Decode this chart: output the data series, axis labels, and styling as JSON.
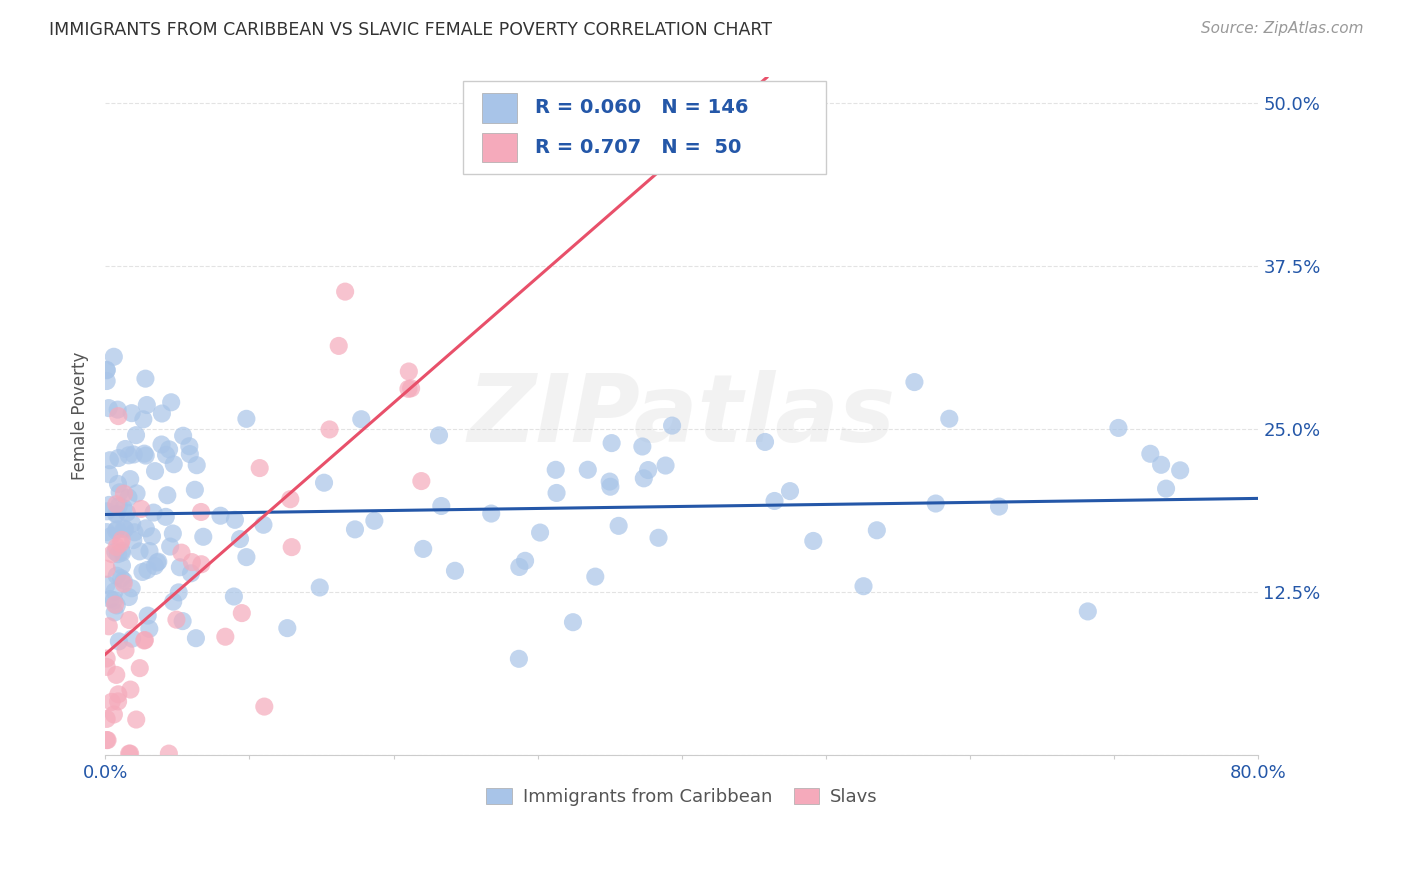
{
  "title": "IMMIGRANTS FROM CARIBBEAN VS SLAVIC FEMALE POVERTY CORRELATION CHART",
  "source": "Source: ZipAtlas.com",
  "ylabel": "Female Poverty",
  "xlim": [
    0.0,
    0.8
  ],
  "ylim": [
    0.0,
    0.52
  ],
  "yticks": [
    0.0,
    0.125,
    0.25,
    0.375,
    0.5
  ],
  "ytick_labels": [
    "",
    "12.5%",
    "25.0%",
    "37.5%",
    "50.0%"
  ],
  "xticks": [
    0.0,
    0.1,
    0.2,
    0.3,
    0.4,
    0.5,
    0.6,
    0.7,
    0.8
  ],
  "xtick_labels": [
    "0.0%",
    "",
    "",
    "",
    "",
    "",
    "",
    "",
    "80.0%"
  ],
  "caribbean_R": 0.06,
  "caribbean_N": 146,
  "slavic_R": 0.707,
  "slavic_N": 50,
  "caribbean_color": "#a8c4e8",
  "slavic_color": "#f5aabb",
  "caribbean_line_color": "#2457a8",
  "slavic_line_color": "#e8506a",
  "legend_label_caribbean": "Immigrants from Caribbean",
  "legend_label_slavic": "Slavs",
  "watermark_text": "ZIPatlas",
  "title_color": "#333333",
  "axis_label_color": "#2457a8",
  "tick_label_color": "#2457a8",
  "legend_text_color": "#555555",
  "background_color": "#ffffff",
  "grid_color": "#dddddd",
  "source_color": "#999999"
}
